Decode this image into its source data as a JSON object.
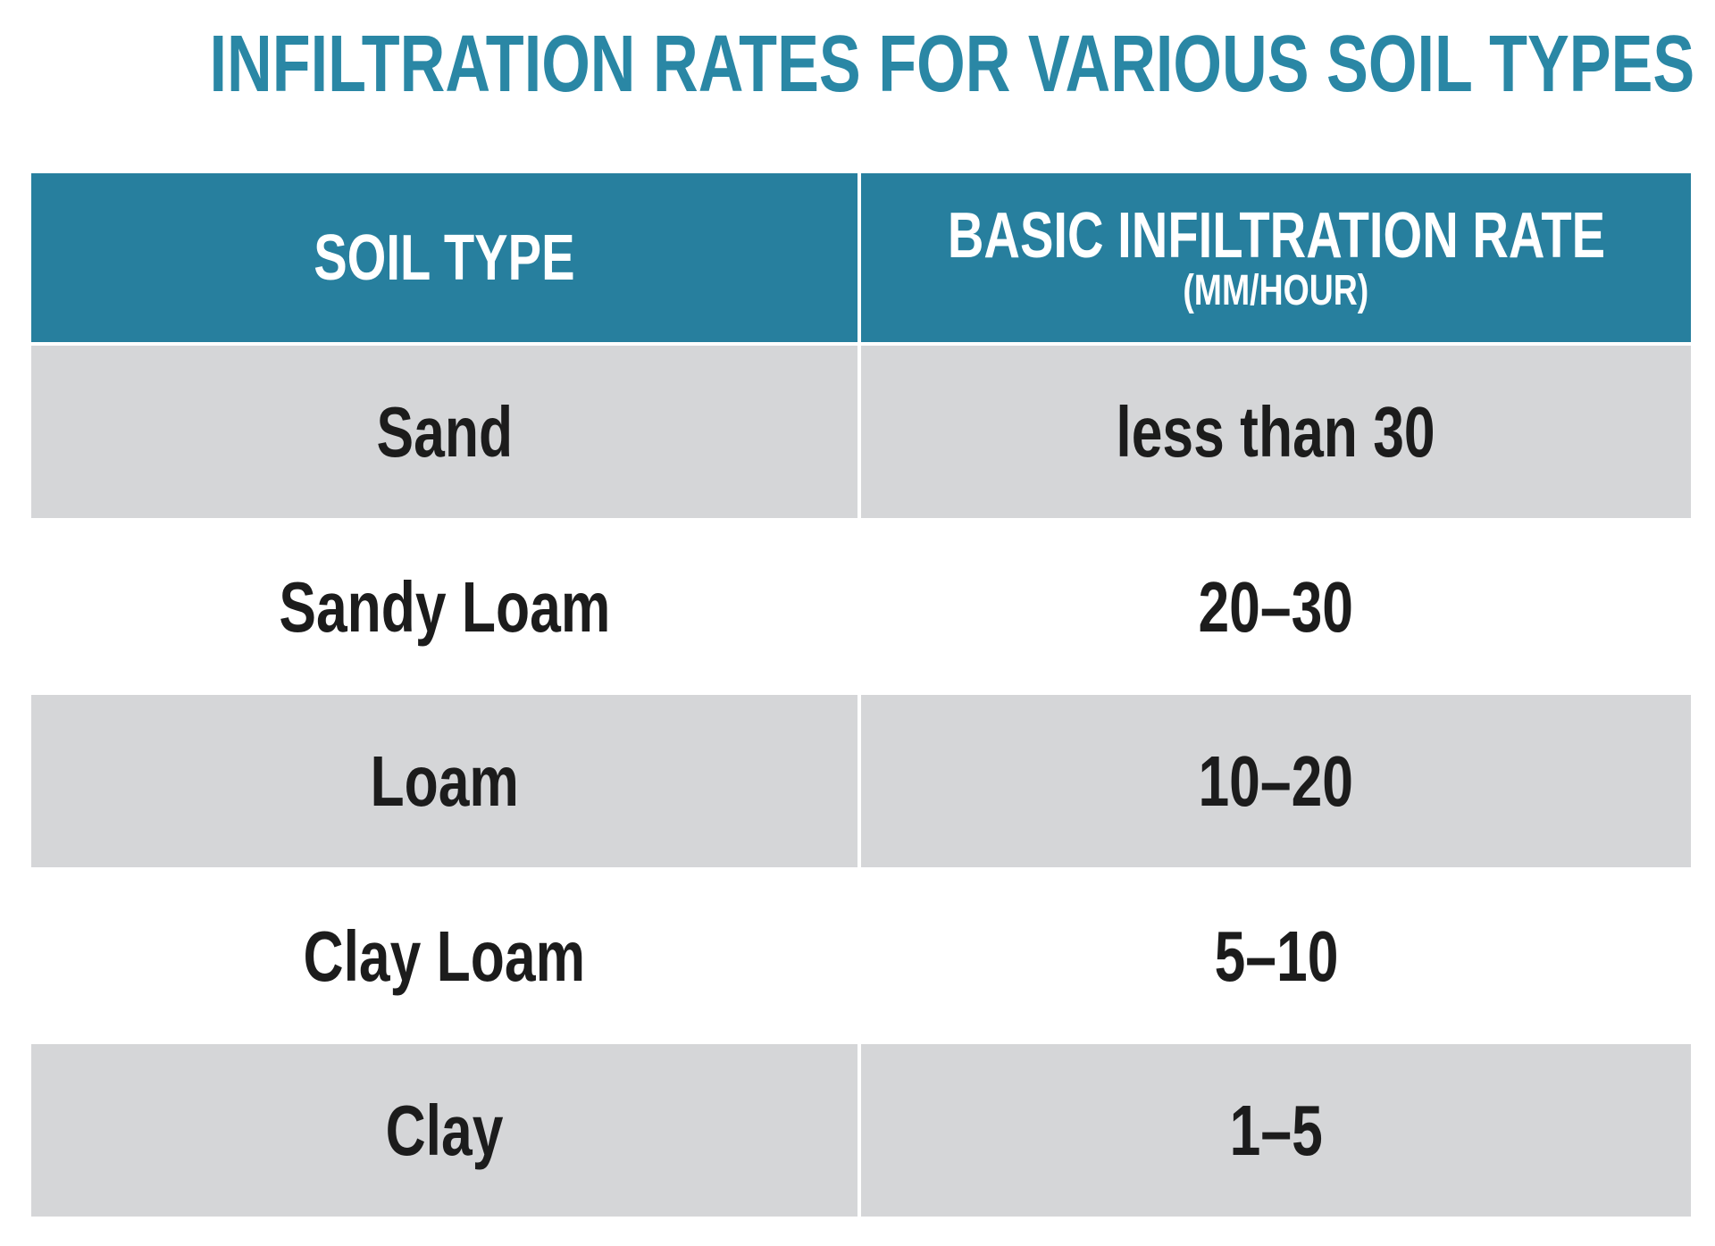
{
  "title": "INFILTRATION RATES FOR VARIOUS SOIL TYPES",
  "table": {
    "header": [
      "SOIL TYPE",
      "BASIC INFILTRATION RATE"
    ],
    "header_unit": "(MM/HOUR)",
    "rows": [
      [
        "Sand",
        "less than 30"
      ],
      [
        "Sandy Loam",
        "20–30"
      ],
      [
        "Loam",
        "10–20"
      ],
      [
        "Clay Loam",
        "5–10"
      ],
      [
        "Clay",
        "1–5"
      ]
    ]
  }
}
